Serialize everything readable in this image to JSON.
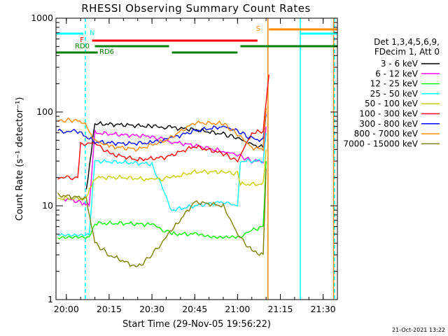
{
  "chart_data": {
    "type": "line",
    "title": "RHESSI Observing Summary Count Rates",
    "xlabel": "Start Time (29-Nov-05 19:56:22)",
    "ylabel": "Count Rate (s⁻¹ detector⁻¹)",
    "y_scale": "log",
    "ylim": [
      1,
      1000
    ],
    "xlim": [
      "19:56:22",
      "21:35:00"
    ],
    "x_ticks": [
      "20:00",
      "20:15",
      "20:30",
      "20:45",
      "21:00",
      "21:15",
      "21:30"
    ],
    "y_ticks": [
      {
        "value": 1,
        "label": "1"
      },
      {
        "value": 10,
        "label": "10"
      },
      {
        "value": 100,
        "label": "100"
      },
      {
        "value": 1000,
        "label": "1000"
      }
    ],
    "legend_position": "right",
    "legend_header": [
      "Det 1,3,4,5,6,9,",
      "FDecim 1, Att 0"
    ],
    "timestamp": "21-Oct-2021 13:22",
    "series": [
      {
        "name": "3 - 6 keV",
        "color": "#000000",
        "x": [
          "20:07",
          "20:10",
          "20:20",
          "20:30",
          "20:37",
          "20:45",
          "20:55",
          "21:00",
          "21:05",
          "21:09",
          "21:10"
        ],
        "y": [
          15,
          75,
          73,
          70,
          68,
          65,
          58,
          53,
          45,
          42,
          110
        ]
      },
      {
        "name": "6 - 12 keV",
        "color": "#ff00ff",
        "x": [
          "19:59",
          "20:05",
          "20:08",
          "20:10",
          "20:20",
          "20:30",
          "20:37",
          "20:45",
          "20:55",
          "21:00",
          "21:05",
          "21:09",
          "21:10"
        ],
        "y": [
          12,
          11,
          10,
          60,
          57,
          55,
          48,
          44,
          38,
          35,
          30,
          30,
          70
        ]
      },
      {
        "name": "12 - 25 keV",
        "color": "#00ff00",
        "x": [
          "19:57",
          "20:08",
          "20:10",
          "20:20",
          "20:30",
          "20:37",
          "20:45",
          "21:00",
          "21:05",
          "21:09",
          "21:10"
        ],
        "y": [
          4.5,
          4.5,
          6.5,
          6.5,
          6.3,
          5,
          5,
          4.5,
          5.5,
          6,
          30
        ]
      },
      {
        "name": "25 - 50 keV",
        "color": "#00ffff",
        "x": [
          "19:57",
          "20:08",
          "20:10",
          "20:20",
          "20:30",
          "20:37",
          "20:45",
          "20:55",
          "21:00",
          "21:01",
          "21:05",
          "21:09",
          "21:10"
        ],
        "y": [
          5,
          5,
          30,
          29,
          28,
          9,
          10,
          11,
          10,
          30,
          30,
          30,
          60
        ]
      },
      {
        "name": "50 - 100 keV",
        "color": "#cccc00",
        "x": [
          "19:57",
          "20:07",
          "20:10",
          "20:20",
          "20:30",
          "20:37",
          "20:45",
          "20:55",
          "21:00",
          "21:01",
          "21:05",
          "21:09",
          "21:10"
        ],
        "y": [
          12,
          12,
          20,
          20,
          19,
          20,
          23,
          23,
          22,
          17,
          17,
          17,
          40
        ]
      },
      {
        "name": "100 - 300 keV",
        "color": "#ff0000",
        "x": [
          "19:57",
          "20:04",
          "20:05",
          "20:10",
          "20:15",
          "20:25",
          "20:35",
          "20:45",
          "20:55",
          "21:00",
          "21:05",
          "21:09",
          "21:10",
          "21:11"
        ],
        "y": [
          20,
          20,
          45,
          47,
          36,
          31,
          33,
          43,
          36,
          30,
          60,
          62,
          130,
          250
        ]
      },
      {
        "name": "300 - 800 keV",
        "color": "#0000ff",
        "x": [
          "19:57",
          "20:04",
          "20:10",
          "20:20",
          "20:30",
          "20:37",
          "20:45",
          "20:55",
          "21:00",
          "21:05",
          "21:09",
          "21:10"
        ],
        "y": [
          62,
          62,
          48,
          46,
          47,
          53,
          63,
          70,
          63,
          52,
          50,
          95
        ]
      },
      {
        "name": "800 - 7000 keV",
        "color": "#ff8c00",
        "x": [
          "19:57",
          "20:02",
          "20:06",
          "20:10",
          "20:15",
          "20:25",
          "20:35",
          "20:45",
          "20:55",
          "21:00",
          "21:05",
          "21:09",
          "21:10"
        ],
        "y": [
          80,
          82,
          78,
          50,
          43,
          40,
          50,
          77,
          75,
          58,
          42,
          40,
          110
        ]
      },
      {
        "name": "7000 - 15000 keV",
        "color": "#808000",
        "x": [
          "19:57",
          "20:07",
          "20:10",
          "20:15",
          "20:25",
          "20:30",
          "20:37",
          "20:45",
          "20:55",
          "21:00",
          "21:05",
          "21:09",
          "21:10"
        ],
        "y": [
          13,
          12,
          4,
          3,
          2.2,
          3,
          5.5,
          11,
          10,
          5,
          3.3,
          3,
          25
        ]
      }
    ],
    "state_bars": [
      {
        "label": "N",
        "color": "#00ffff",
        "segments": [
          [
            "19:56:22",
            "20:06:00"
          ],
          [
            "21:22:00",
            "21:35:00"
          ]
        ]
      },
      {
        "label": "F",
        "color": "#ff0000",
        "segments": [
          [
            "20:09:00",
            "21:07:00"
          ]
        ]
      },
      {
        "label": "S",
        "color": "#ff8c00",
        "segments": [
          [
            "21:11:00",
            "21:35:00"
          ]
        ]
      },
      {
        "label": "RD0",
        "color": "#008000",
        "segments": [
          [
            "19:56:22",
            "20:11:00"
          ],
          [
            "20:37:00",
            "21:00:00"
          ]
        ]
      },
      {
        "label": "RD6",
        "color": "#008000",
        "segments": [
          [
            "20:10:00",
            "20:36:00"
          ],
          [
            "21:01:00",
            "21:35:00"
          ]
        ]
      }
    ],
    "vertical_markers": [
      {
        "time": "20:06:40",
        "color": "#00ffff",
        "style": "dashed"
      },
      {
        "time": "21:10:40",
        "color": "#ff8c00",
        "style": "solid"
      },
      {
        "time": "21:22:00",
        "color": "#00ffff",
        "style": "solid"
      },
      {
        "time": "21:33:40",
        "color": "#ff8c00",
        "style": "solid"
      },
      {
        "time": "21:34:00",
        "color": "#00ffff",
        "style": "dashed"
      }
    ]
  }
}
